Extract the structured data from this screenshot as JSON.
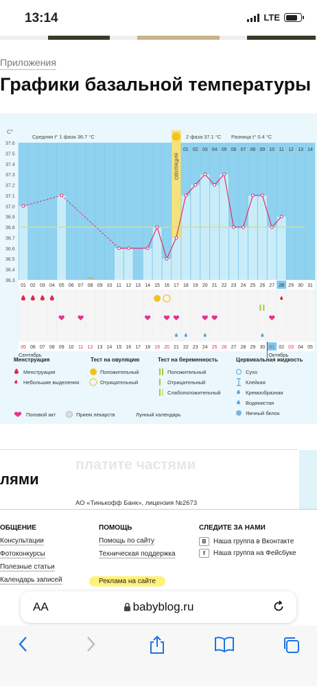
{
  "status_bar": {
    "time": "13:14",
    "network": "LTE"
  },
  "breadcrumb": "Приложения",
  "page_title": "Графики базальной температуры",
  "chart_data": {
    "type": "line",
    "unit_label": "C°",
    "y_ticks": [
      "37.6",
      "37.5",
      "37.4",
      "37.3",
      "37.2",
      "37.1",
      "37.0",
      "36.9",
      "36.8",
      "36.7",
      "36.6",
      "36.5",
      "36.4",
      "36.3"
    ],
    "ylim": [
      36.3,
      37.6
    ],
    "phase1_label": "Средняя t° 1 фаза 36.7 °C",
    "phase2_label": "2 фаза 37.1 °C",
    "difference_label": "Разница t° 0.4 °C",
    "ovulation_label": "ОВУЛЯЦИЯ",
    "cycle_days": [
      "01",
      "02",
      "03",
      "04",
      "05",
      "06",
      "07",
      "08",
      "09",
      "10",
      "11",
      "12",
      "13",
      "14",
      "15",
      "16",
      "17",
      "18",
      "19",
      "20",
      "21",
      "22",
      "23",
      "24",
      "25",
      "26",
      "27",
      "28",
      "29",
      "30",
      "31"
    ],
    "phase2_days": [
      "01",
      "02",
      "03",
      "04",
      "05",
      "06",
      "07",
      "08",
      "09",
      "10",
      "11",
      "12",
      "13",
      "14"
    ],
    "dates": [
      "05",
      "06",
      "07",
      "08",
      "09",
      "10",
      "11",
      "12",
      "13",
      "14",
      "15",
      "16",
      "17",
      "18",
      "19",
      "20",
      "21",
      "22",
      "23",
      "24",
      "25",
      "26",
      "27",
      "28",
      "29",
      "30",
      "01",
      "02",
      "03",
      "04",
      "05"
    ],
    "red_dates": [
      0,
      6,
      7,
      14,
      15,
      20,
      21,
      26,
      28
    ],
    "month_labels": [
      "Сентябрь",
      "Октябрь"
    ],
    "cover_line": 36.8,
    "temperatures": [
      {
        "day": 1,
        "value": 37.0
      },
      {
        "day": 5,
        "value": 37.1
      },
      {
        "day": 11,
        "value": 36.6
      },
      {
        "day": 12,
        "value": 36.6
      },
      {
        "day": 14,
        "value": 36.6
      },
      {
        "day": 15,
        "value": 36.8
      },
      {
        "day": 16,
        "value": 36.5
      },
      {
        "day": 17,
        "value": 36.7
      },
      {
        "day": 18,
        "value": 37.1
      },
      {
        "day": 19,
        "value": 37.2
      },
      {
        "day": 20,
        "value": 37.3
      },
      {
        "day": 21,
        "value": 37.2
      },
      {
        "day": 22,
        "value": 37.3
      },
      {
        "day": 23,
        "value": 36.8
      },
      {
        "day": 24,
        "value": 36.8
      },
      {
        "day": 25,
        "value": 37.1
      },
      {
        "day": 26,
        "value": 37.1
      },
      {
        "day": 27,
        "value": 36.8
      },
      {
        "day": 28,
        "value": 36.9
      }
    ],
    "dashed_segments": [
      [
        1,
        5
      ],
      [
        5,
        11
      ]
    ],
    "menstruation_days": [
      1,
      2,
      3,
      4
    ],
    "small_discharge_days": [
      28
    ],
    "ovulation_test_positive_days": [
      15
    ],
    "ovulation_test_negative_days": [
      16
    ],
    "pregnancy_test_days": [
      26
    ],
    "intercourse_days": [
      5,
      7,
      14,
      16,
      17,
      20,
      21,
      27
    ],
    "cervical_fluid_days": [
      17,
      18,
      20,
      26
    ],
    "lunar_calendar_days": [
      8
    ],
    "today_index": 27,
    "colors": {
      "bar": "#c9ecf9",
      "plot_bg": "#8fd2f0",
      "line": "#d8306f",
      "ovulation": "#f5e27a",
      "cover": "#d6e08a"
    }
  },
  "legend": {
    "menstruation": {
      "title": "Менструация",
      "items": [
        "Менструация",
        "Небольшие выделения"
      ]
    },
    "ovulation_test": {
      "title": "Тест на овуляцию",
      "items": [
        "Положительный",
        "Отрицательный"
      ]
    },
    "pregnancy_test": {
      "title": "Тест на беременность",
      "items": [
        "Положительный",
        "Отрицательный",
        "Слабоположительный"
      ]
    },
    "cervical": {
      "title": "Цервикальная жидкость",
      "items": [
        "Сухо",
        "Клейкая",
        "Кремообразная",
        "Водянистая",
        "Яичный белок"
      ]
    },
    "extra": [
      "Половой акт",
      "Прием лекарств",
      "Лунный календарь"
    ]
  },
  "ad": {
    "slogan": "платите частями",
    "word": "лями",
    "legal": "АО «Тинькофф Банк», лицензия №2673"
  },
  "footer": {
    "col1": {
      "title": "ОБЩЕНИЕ",
      "links": [
        "Консультации",
        "Фотоконкурсы",
        "Полезные статьи",
        "Календарь записей"
      ]
    },
    "col2": {
      "title": "ПОМОЩЬ",
      "links": [
        "Помощь по сайту",
        "Техническая поддержка"
      ],
      "ad_link": "Реклама на сайте"
    },
    "col3": {
      "title": "СЛЕДИТЕ ЗА НАМИ",
      "links": [
        "Наша группа в Вконтакте",
        "Наша группа на Фейсбуке"
      ]
    }
  },
  "browser": {
    "text_size": "AA",
    "url": "babyblog.ru"
  }
}
